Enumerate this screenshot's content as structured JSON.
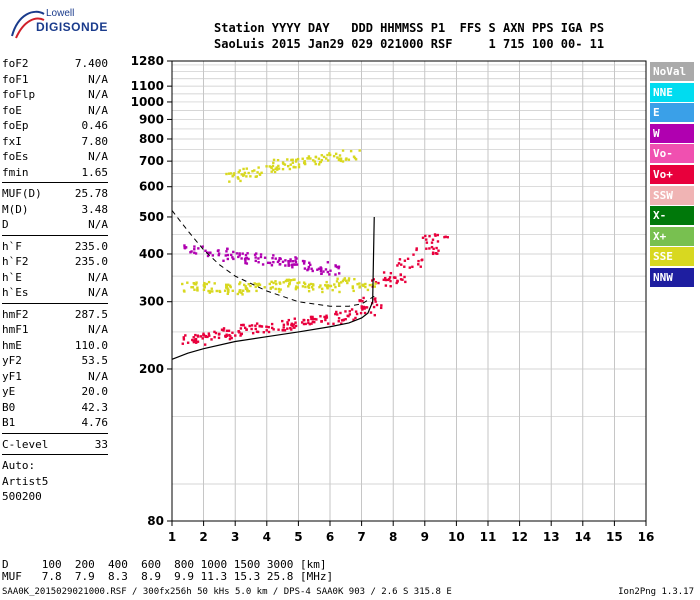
{
  "logo": {
    "line1": "Lowell",
    "line2": "DIGISONDE"
  },
  "header": {
    "line1": "Station YYYY DAY   DDD HHMMSS P1  FFS S AXN PPS IGA PS",
    "line2": "SaoLuis 2015 Jan29 029 021000 RSF     1 715 100 00- 11"
  },
  "params": [
    {
      "name": "foF2",
      "value": "7.400"
    },
    {
      "name": "foF1",
      "value": "N/A"
    },
    {
      "name": "foFlp",
      "value": "N/A"
    },
    {
      "name": "foE",
      "value": "N/A"
    },
    {
      "name": "foEp",
      "value": "0.46"
    },
    {
      "name": "fxI",
      "value": "7.80"
    },
    {
      "name": "foEs",
      "value": "N/A"
    },
    {
      "name": "fmin",
      "value": "1.65"
    },
    {
      "name": "MUF(D)",
      "value": "25.78"
    },
    {
      "name": "M(D)",
      "value": "3.48"
    },
    {
      "name": "D",
      "value": "N/A"
    },
    {
      "name": "h`F",
      "value": "235.0"
    },
    {
      "name": "h`F2",
      "value": "235.0"
    },
    {
      "name": "h`E",
      "value": "N/A"
    },
    {
      "name": "h`Es",
      "value": "N/A"
    },
    {
      "name": "hmF2",
      "value": "287.5"
    },
    {
      "name": "hmF1",
      "value": "N/A"
    },
    {
      "name": "hmE",
      "value": "110.0"
    },
    {
      "name": "yF2",
      "value": "53.5"
    },
    {
      "name": "yF1",
      "value": "N/A"
    },
    {
      "name": "yE",
      "value": "20.0"
    },
    {
      "name": "B0",
      "value": "42.3"
    },
    {
      "name": "B1",
      "value": "4.76"
    },
    {
      "name": "C-level",
      "value": "33"
    }
  ],
  "notes": [
    "Auto:",
    "Artist5",
    "500200"
  ],
  "legend": [
    {
      "label": "NoVal",
      "color": "#aaaaaa"
    },
    {
      "label": "NNE",
      "color": "#00dcf0"
    },
    {
      "label": "E",
      "color": "#3aa0e8"
    },
    {
      "label": "W",
      "color": "#b000b0"
    },
    {
      "label": "Vo-",
      "color": "#f050b0"
    },
    {
      "label": "Vo+",
      "color": "#e8003c"
    },
    {
      "label": "SSW",
      "color": "#f0b4b4"
    },
    {
      "label": "X-",
      "color": "#00780a"
    },
    {
      "label": "X+",
      "color": "#78c050"
    },
    {
      "label": "SSE",
      "color": "#d8d820"
    },
    {
      "label": "NNW",
      "color": "#1e1ea0"
    }
  ],
  "bottom": {
    "line1": "D     100  200  400  600  800 1000 1500 3000 [km]",
    "line2": "MUF   7.8  7.9  8.3  8.9  9.9 11.3 15.3 25.8 [MHz]"
  },
  "footer": {
    "left": "SAA0K_2015029021000.RSF / 300fx256h 50 kHs 5.0 km / DPS-4 SAA0K 903 / 2.6 S 315.8 E",
    "right": "Ion2Png 1.3.17"
  },
  "chart_data": {
    "type": "scatter",
    "xlabel": "",
    "ylabel": "",
    "xlim": [
      1,
      16
    ],
    "ylim": [
      80,
      1280
    ],
    "x_ticks": [
      1,
      2,
      3,
      4,
      5,
      6,
      7,
      8,
      9,
      10,
      11,
      12,
      13,
      14,
      15,
      16
    ],
    "y_ticks": [
      80,
      200,
      300,
      400,
      500,
      600,
      700,
      800,
      900,
      1000,
      1100,
      1280
    ],
    "grid": true,
    "y_scale": "log",
    "legend_placement": "right",
    "ionogram_traces": [
      {
        "name": "Vo+",
        "x": [
          1.65,
          2.0,
          2.5,
          3.0,
          3.5,
          4.0,
          4.5,
          5.0,
          5.5,
          6.0,
          6.5,
          7.0,
          7.3
        ],
        "y": [
          240,
          243,
          248,
          252,
          255,
          258,
          262,
          265,
          268,
          272,
          278,
          285,
          300
        ]
      },
      {
        "name": "W",
        "x": [
          1.7,
          2.5,
          3.0,
          3.5,
          4.0,
          4.5,
          5.0,
          5.5,
          6.0
        ],
        "y": [
          415,
          405,
          398,
          392,
          388,
          383,
          378,
          372,
          365
        ]
      },
      {
        "name": "SSE",
        "x": [
          3.0,
          3.5,
          4.0,
          4.5,
          5.0,
          5.5,
          6.0,
          6.5
        ],
        "y": [
          640,
          660,
          670,
          690,
          700,
          710,
          720,
          730
        ]
      },
      {
        "name": "Vo+",
        "x": [
          7.7,
          8.0,
          8.5,
          9.0,
          9.3
        ],
        "y": [
          340,
          350,
          380,
          410,
          440
        ]
      },
      {
        "name": "SSE",
        "x": [
          1.6,
          2.0,
          2.5,
          3.0,
          3.5,
          4.0,
          4.5,
          5.0,
          5.5,
          6.0,
          6.5,
          7.0
        ],
        "y": [
          330,
          330,
          325,
          325,
          330,
          330,
          335,
          335,
          330,
          330,
          340,
          330
        ]
      }
    ],
    "profile_curve": {
      "x": [
        1.0,
        1.5,
        2.0,
        3.0,
        4.0,
        5.0,
        6.0,
        6.6,
        7.0,
        7.2,
        7.35,
        7.4
      ],
      "y": [
        212,
        220,
        226,
        236,
        243,
        250,
        258,
        264,
        272,
        280,
        300,
        500
      ]
    },
    "dashed_curve": {
      "x": [
        1.0,
        1.5,
        2.0,
        2.5,
        3.0,
        4.0,
        5.0,
        6.0,
        6.6,
        7.0,
        7.4
      ],
      "y": [
        520,
        460,
        410,
        375,
        350,
        320,
        300,
        292,
        292,
        296,
        310
      ]
    }
  }
}
